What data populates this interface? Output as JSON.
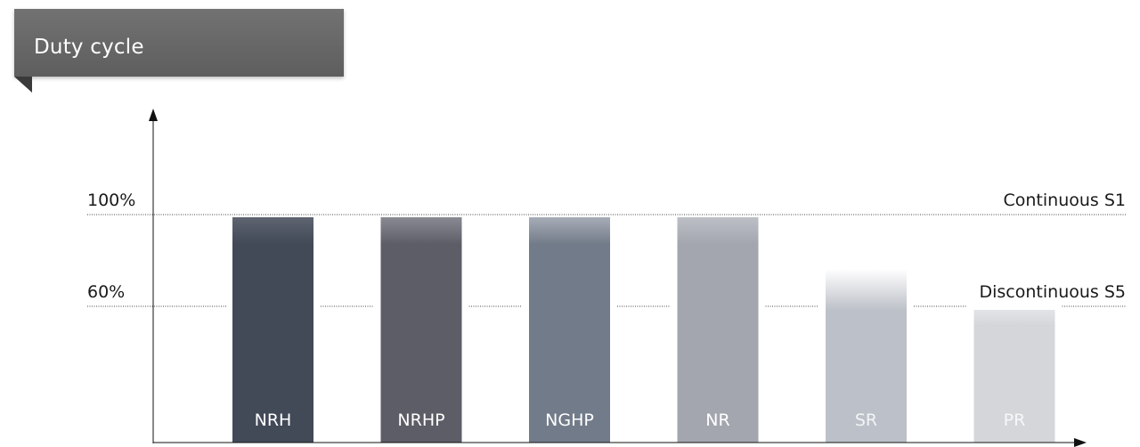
{
  "chart_data": {
    "type": "bar",
    "title": "Duty cycle",
    "categories": [
      "NRH",
      "NRHP",
      "NGHP",
      "NR",
      "SR",
      "PR"
    ],
    "values": [
      100,
      100,
      100,
      100,
      60,
      60
    ],
    "ylim": [
      0,
      100
    ],
    "yticks": [
      {
        "value": 100,
        "label": "100%"
      },
      {
        "value": 60,
        "label": "60%"
      }
    ],
    "reference_lines": [
      {
        "value": 100,
        "label": "Continuous S1"
      },
      {
        "value": 60,
        "label": "Discontinuous S5"
      }
    ],
    "bar_colors": [
      [
        "#5e6470",
        "#424957"
      ],
      [
        "#8a8a94",
        "#5c5d66"
      ],
      [
        "#a7adb7",
        "#727b89"
      ],
      [
        "#bcbfc6",
        "#a3a6ae"
      ],
      [
        "#ffffff",
        "#bcc0c8"
      ],
      [
        "#e2e4e8",
        "#d4d6da"
      ]
    ],
    "bar_label_colors": [
      "#ffffff",
      "#ffffff",
      "#ffffff",
      "#ffffff",
      "#f3f4f6",
      "#f7f7f8"
    ]
  }
}
